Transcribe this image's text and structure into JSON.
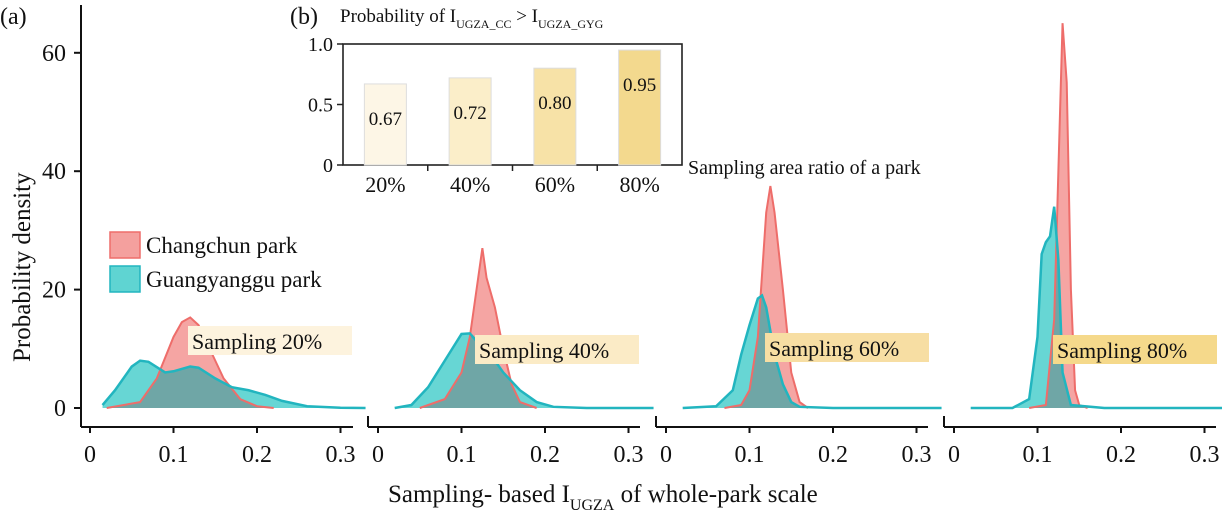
{
  "figure": {
    "panel_a_label": "(a)",
    "panel_b_label": "(b)",
    "ylabel": "Probability density",
    "xlabel_main": "Sampling- based I",
    "xlabel_sub": "UGZA",
    "xlabel_tail": " of whole-park scale",
    "inset_title_main": "Probability of  I",
    "inset_title_sub1": "UGZA_CC",
    "inset_title_mid": " > I",
    "inset_title_sub2": "UGZA_GYG",
    "inset_xlabel": "Sampling area ratio of a park"
  },
  "legend": [
    {
      "label": "Changchun park",
      "fill": "#f4a09e",
      "stroke": "#ee6d6a"
    },
    {
      "label": "Guangyanggu park",
      "fill": "#5fd4d2",
      "stroke": "#22b5bf"
    }
  ],
  "colors": {
    "changchun_fill": "#f4a09e",
    "changchun_stroke": "#ee6d6a",
    "guangyanggu_fill": "#5fd4d2",
    "guangyanggu_stroke": "#22b5bf",
    "overlap": "#6fa6a6"
  },
  "chart_data": [
    {
      "type": "area",
      "title": "",
      "ylabel": "Probability density",
      "xlabel": "Sampling- based I_UGZA of whole-park scale",
      "ylim": [
        0,
        65
      ],
      "y_ticks": [
        "0",
        "20",
        "40",
        "60"
      ],
      "x_ticks": [
        "0",
        "0.1",
        "0.2",
        "0.3"
      ],
      "xlim": [
        0,
        0.35
      ],
      "panels": [
        {
          "annotation": "Sampling 20%",
          "annotation_color": "#fdf3de",
          "series": [
            {
              "name": "Changchun park",
              "x": [
                0.02,
                0.06,
                0.08,
                0.1,
                0.11,
                0.12,
                0.13,
                0.14,
                0.16,
                0.18,
                0.2,
                0.22
              ],
              "y": [
                0,
                1,
                5,
                12,
                14.5,
                15.3,
                14,
                11,
                5,
                1.5,
                0.3,
                0
              ]
            },
            {
              "name": "Guangyanggu park",
              "x": [
                0.015,
                0.03,
                0.05,
                0.06,
                0.07,
                0.09,
                0.1,
                0.12,
                0.13,
                0.15,
                0.17,
                0.19,
                0.21,
                0.23,
                0.26,
                0.3,
                0.33
              ],
              "y": [
                0.5,
                3,
                7,
                8,
                7.8,
                6,
                6.2,
                7,
                6.8,
                5,
                3.5,
                3,
                2.2,
                1.2,
                0.3,
                0.05,
                0
              ]
            }
          ]
        },
        {
          "annotation": "Sampling 40%",
          "annotation_color": "#fbebc6",
          "series": [
            {
              "name": "Changchun park",
              "x": [
                0.05,
                0.08,
                0.1,
                0.11,
                0.12,
                0.125,
                0.13,
                0.14,
                0.15,
                0.16,
                0.17,
                0.19
              ],
              "y": [
                0,
                1.5,
                6,
                12,
                22,
                27,
                22,
                17,
                10,
                4,
                1,
                0
              ]
            },
            {
              "name": "Guangyanggu park",
              "x": [
                0.02,
                0.04,
                0.06,
                0.08,
                0.1,
                0.11,
                0.12,
                0.13,
                0.15,
                0.17,
                0.19,
                0.21,
                0.25,
                0.3,
                0.33
              ],
              "y": [
                0,
                0.5,
                3.5,
                8,
                12.5,
                12.6,
                11,
                10,
                6,
                3,
                1,
                0.2,
                0,
                0,
                0
              ]
            }
          ]
        },
        {
          "annotation": "Sampling 60%",
          "annotation_color": "#f7dea3",
          "series": [
            {
              "name": "Changchun park",
              "x": [
                0.07,
                0.09,
                0.1,
                0.11,
                0.12,
                0.125,
                0.13,
                0.14,
                0.15,
                0.16,
                0.17
              ],
              "y": [
                0,
                0.5,
                3,
                12,
                33,
                37.5,
                33,
                20,
                6,
                1,
                0
              ]
            },
            {
              "name": "Guangyanggu park",
              "x": [
                0.02,
                0.06,
                0.08,
                0.09,
                0.1,
                0.11,
                0.115,
                0.12,
                0.13,
                0.14,
                0.15,
                0.16,
                0.2,
                0.25,
                0.3,
                0.33
              ],
              "y": [
                0,
                0.3,
                3,
                9,
                14,
                18.5,
                19,
                17,
                9,
                4,
                1,
                0.2,
                0,
                0,
                0,
                0
              ]
            }
          ]
        },
        {
          "annotation": "Sampling 80%",
          "annotation_color": "#f5d98b",
          "series": [
            {
              "name": "Changchun park",
              "x": [
                0.09,
                0.11,
                0.12,
                0.125,
                0.13,
                0.135,
                0.14,
                0.145,
                0.15,
                0.16
              ],
              "y": [
                0,
                0.5,
                15,
                40,
                65,
                55,
                20,
                3,
                0.5,
                0
              ]
            },
            {
              "name": "Guangyanggu park",
              "x": [
                0.02,
                0.07,
                0.09,
                0.1,
                0.105,
                0.11,
                0.115,
                0.12,
                0.125,
                0.13,
                0.14,
                0.18,
                0.25,
                0.3,
                0.33
              ],
              "y": [
                0,
                0,
                1.5,
                12,
                26,
                28,
                29,
                34,
                25,
                6,
                0.5,
                0,
                0,
                0,
                0
              ]
            }
          ]
        }
      ]
    },
    {
      "type": "bar",
      "title": "Probability of I_UGZA_CC > I_UGZA_GYG",
      "xlabel": "Sampling area ratio of a park",
      "ylabel": "",
      "categories": [
        "20%",
        "40%",
        "60%",
        "80%"
      ],
      "values": [
        0.67,
        0.72,
        0.8,
        0.95
      ],
      "value_labels": [
        "0.67",
        "0.72",
        "0.80",
        "0.95"
      ],
      "bar_colors": [
        "#fdf6e6",
        "#fbeec9",
        "#f7e2a7",
        "#f3d98e"
      ],
      "y_ticks": [
        "0",
        "0.5",
        "1.0"
      ],
      "ylim": [
        0,
        1.0
      ]
    }
  ]
}
